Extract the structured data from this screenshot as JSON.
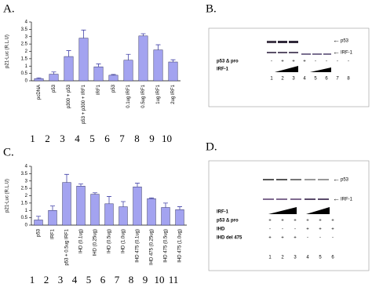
{
  "chart_data": [
    {
      "type": "bar",
      "panel_label": "A.",
      "ylabel": "p21-Luc (R.L.U)",
      "categories": [
        "pcDNA",
        "p53",
        "p300 + p53",
        "p53 + p300 + IRF1",
        "IRF1",
        "p53",
        "0.1ug IRF1",
        "0.5ug IRF1",
        "1ug IRF1",
        "2ug IRF1"
      ],
      "lane_numbers": [
        "1",
        "2",
        "3",
        "4",
        "5",
        "6",
        "7",
        "8",
        "9",
        "10"
      ],
      "values": [
        0.15,
        0.45,
        1.65,
        2.9,
        0.95,
        0.38,
        1.4,
        3.05,
        2.1,
        1.28
      ],
      "errors": [
        0.05,
        0.15,
        0.4,
        0.55,
        0.2,
        0.05,
        0.4,
        0.15,
        0.35,
        0.15
      ],
      "color": "#a3a3f0",
      "ylim": [
        0,
        4
      ],
      "yticks": [
        0,
        0.5,
        1,
        1.5,
        2,
        2.5,
        3,
        3.5,
        4
      ]
    },
    {
      "type": "bar",
      "panel_label": "C.",
      "ylabel": "p21-Luc (R.L.U)",
      "categories": [
        "p53",
        "IRF1",
        "p53 + 0.5ug IRF1",
        "IHD (0.1ug)",
        "IHD (0.25ug)",
        "IHD (0.5ug)",
        "IHD (1.0ug)",
        "IHD 475 (0.1ug)",
        "IHD 475 (0.25ug)",
        "IHD 475 (0.5ug)",
        "IHD 475 (1.0ug)"
      ],
      "lane_numbers": [
        "1",
        "2",
        "3",
        "4",
        "5",
        "6",
        "7",
        "8",
        "9",
        "10",
        "11"
      ],
      "values": [
        0.35,
        1.0,
        2.9,
        2.65,
        2.1,
        1.45,
        1.25,
        2.6,
        1.8,
        1.2,
        1.05
      ],
      "errors": [
        0.25,
        0.3,
        0.55,
        0.15,
        0.1,
        0.5,
        0.35,
        0.25,
        0.05,
        0.3,
        0.2
      ],
      "color": "#a3a3f0",
      "ylim": [
        0,
        4
      ],
      "yticks": [
        0,
        0.5,
        1,
        1.5,
        2,
        2.5,
        3,
        3.5,
        4
      ]
    }
  ],
  "blot_b": {
    "panel_label": "B.",
    "markers": [
      "p53",
      "IRF-1"
    ],
    "rows": [
      {
        "name": "p53 Δ pro",
        "signs": [
          "-",
          "+",
          "+",
          "+",
          "-",
          "-",
          "-",
          "-"
        ]
      },
      {
        "name": "IRF-1",
        "signs": []
      }
    ],
    "lane_numbers": [
      "1",
      "2",
      "3",
      "4",
      "5",
      "6",
      "7",
      "8"
    ]
  },
  "blot_d": {
    "panel_label": "D.",
    "markers": [
      "p53",
      "IRF-1"
    ],
    "rows": [
      {
        "name": "IRF-1",
        "signs": []
      },
      {
        "name": "p53 Δ pro",
        "signs": [
          "+",
          "+",
          "+",
          "+",
          "+",
          "+"
        ]
      },
      {
        "name": "IHD",
        "signs": [
          "-",
          "-",
          "-",
          "+",
          "+",
          "+"
        ]
      },
      {
        "name": "IHD del 475",
        "signs": [
          "+",
          "+",
          "+",
          "-",
          "-",
          "-"
        ]
      }
    ],
    "lane_numbers": [
      "1",
      "2",
      "3",
      "4",
      "5",
      "6"
    ]
  }
}
